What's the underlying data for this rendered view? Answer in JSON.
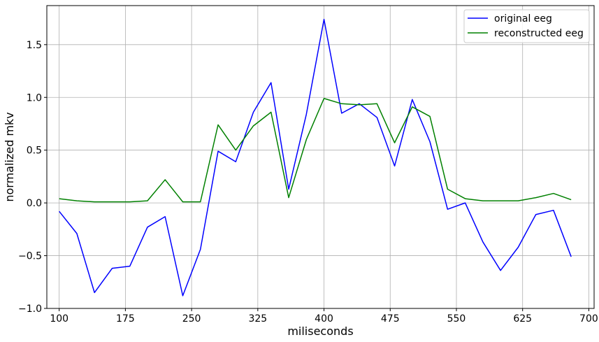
{
  "chart_data": {
    "type": "line",
    "title": "",
    "xlabel": "miliseconds",
    "ylabel": "normalized mkv",
    "xlim": [
      86,
      706
    ],
    "ylim": [
      -1.0,
      1.87
    ],
    "xticks": [
      100,
      175,
      250,
      325,
      400,
      475,
      550,
      625,
      700
    ],
    "yticks": [
      -1.0,
      -0.5,
      0.0,
      0.5,
      1.0,
      1.5
    ],
    "xtick_labels": [
      "100",
      "175",
      "250",
      "325",
      "400",
      "475",
      "550",
      "625",
      "700"
    ],
    "ytick_labels": [
      "−1.0",
      "−0.5",
      "0.0",
      "0.5",
      "1.0",
      "1.5"
    ],
    "grid": true,
    "legend_position": "upper-right",
    "x": [
      100,
      120,
      140,
      160,
      180,
      200,
      220,
      240,
      260,
      280,
      300,
      320,
      340,
      360,
      380,
      400,
      420,
      440,
      460,
      480,
      500,
      520,
      540,
      560,
      580,
      600,
      620,
      640,
      660,
      680
    ],
    "series": [
      {
        "name": "original eeg",
        "color": "#0000ff",
        "values": [
          -0.08,
          -0.29,
          -0.85,
          -0.62,
          -0.6,
          -0.23,
          -0.13,
          -0.88,
          -0.44,
          0.49,
          0.39,
          0.86,
          1.14,
          0.13,
          0.84,
          1.74,
          0.85,
          0.94,
          0.81,
          0.35,
          0.98,
          0.58,
          -0.06,
          0.0,
          -0.37,
          -0.64,
          -0.42,
          -0.11,
          -0.07,
          -0.51
        ]
      },
      {
        "name": "reconstructed eeg",
        "color": "#008000",
        "values": [
          0.04,
          0.02,
          0.01,
          0.01,
          0.01,
          0.02,
          0.22,
          0.01,
          0.01,
          0.74,
          0.5,
          0.73,
          0.86,
          0.05,
          0.6,
          0.99,
          0.94,
          0.93,
          0.94,
          0.57,
          0.91,
          0.82,
          0.13,
          0.04,
          0.02,
          0.02,
          0.02,
          0.05,
          0.09,
          0.03
        ]
      }
    ]
  }
}
